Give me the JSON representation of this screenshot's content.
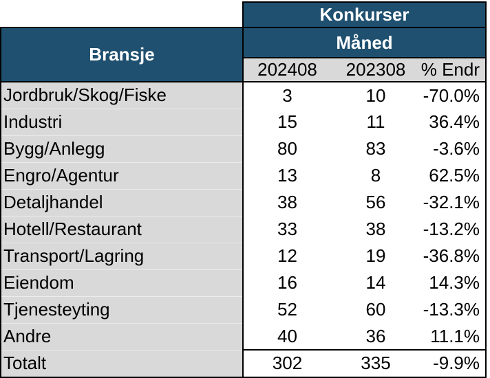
{
  "colors": {
    "header_blue": "#1F506F",
    "row_gray": "#D9D9D9",
    "border": "#000000",
    "data_bg": "#FFFFFF",
    "header_text": "#FFFFFF",
    "body_text": "#000000"
  },
  "header": {
    "title": "Konkurser",
    "group": "Måned",
    "corner": "Bransje"
  },
  "columns": [
    "202408",
    "202308",
    "% Endr"
  ],
  "rows": [
    {
      "label": "Jordbruk/Skog/Fiske",
      "col1": "3",
      "col2": "10",
      "pct": "-70.0%"
    },
    {
      "label": "Industri",
      "col1": "15",
      "col2": "11",
      "pct": "36.4%"
    },
    {
      "label": "Bygg/Anlegg",
      "col1": "80",
      "col2": "83",
      "pct": "-3.6%"
    },
    {
      "label": "Engro/Agentur",
      "col1": "13",
      "col2": "8",
      "pct": "62.5%"
    },
    {
      "label": "Detaljhandel",
      "col1": "38",
      "col2": "56",
      "pct": "-32.1%"
    },
    {
      "label": "Hotell/Restaurant",
      "col1": "33",
      "col2": "38",
      "pct": "-13.2%"
    },
    {
      "label": "Transport/Lagring",
      "col1": "12",
      "col2": "19",
      "pct": "-36.8%"
    },
    {
      "label": "Eiendom",
      "col1": "16",
      "col2": "14",
      "pct": "14.3%"
    },
    {
      "label": "Tjenesteyting",
      "col1": "52",
      "col2": "60",
      "pct": "-13.3%"
    },
    {
      "label": "Andre",
      "col1": "40",
      "col2": "36",
      "pct": "11.1%"
    }
  ],
  "total_row": {
    "label": "Totalt",
    "col1": "302",
    "col2": "335",
    "pct": "-9.9%"
  },
  "chart_data": {
    "type": "table",
    "title": "Konkurser",
    "group_header": "Måned",
    "row_header": "Bransje",
    "columns": [
      "202408",
      "202308",
      "% Endr"
    ],
    "categories": [
      "Jordbruk/Skog/Fiske",
      "Industri",
      "Bygg/Anlegg",
      "Engro/Agentur",
      "Detaljhandel",
      "Hotell/Restaurant",
      "Transport/Lagring",
      "Eiendom",
      "Tjenesteyting",
      "Andre"
    ],
    "series": [
      {
        "name": "202408",
        "values": [
          3,
          15,
          80,
          13,
          38,
          33,
          12,
          16,
          52,
          40
        ],
        "total": 302
      },
      {
        "name": "202308",
        "values": [
          10,
          11,
          83,
          8,
          56,
          38,
          19,
          14,
          60,
          36
        ],
        "total": 335
      },
      {
        "name": "% Endr",
        "values": [
          -70.0,
          36.4,
          -3.6,
          62.5,
          -32.1,
          -13.2,
          -36.8,
          14.3,
          -13.3,
          11.1
        ],
        "total": -9.9
      }
    ],
    "total_label": "Totalt"
  }
}
